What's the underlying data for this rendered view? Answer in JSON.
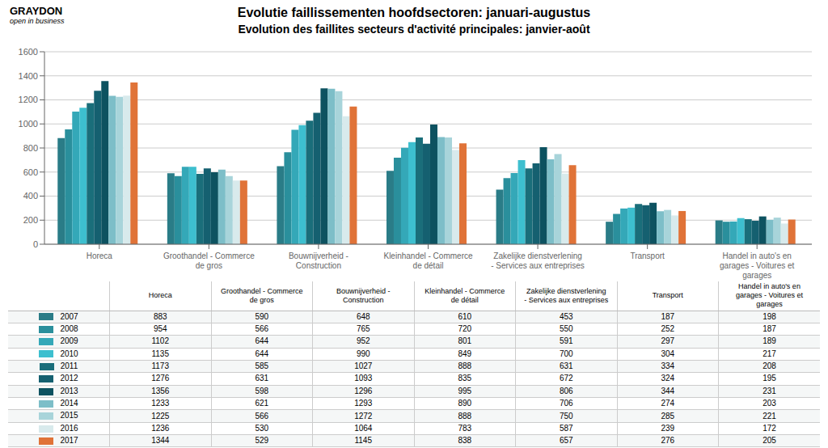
{
  "chart_data": {
    "type": "bar",
    "title": "Evolutie faillissementen hoofdsectoren: januari-augustus",
    "subtitle": "Evolution des faillites secteurs d'activité principales: janvier-août",
    "annotations": [
      "GRAYDON",
      "open in business"
    ],
    "categories": [
      "Horeca",
      "Groothandel - Commerce\nde gros",
      "Bouwnijverheid -\nConstruction",
      "Kleinhandel - Commerce\nde détail",
      "Zakelijke dienstverlening\n- Services aux entreprises",
      "Transport",
      "Handel in auto's en\ngarages - Voitures et\ngarages"
    ],
    "series": [
      {
        "name": "2007",
        "color": "#2a7c87",
        "values": [
          883,
          590,
          648,
          610,
          453,
          187,
          198
        ]
      },
      {
        "name": "2008",
        "color": "#2a8f9c",
        "values": [
          954,
          566,
          765,
          720,
          550,
          252,
          187
        ]
      },
      {
        "name": "2009",
        "color": "#34a8b8",
        "values": [
          1102,
          644,
          952,
          801,
          591,
          297,
          189
        ]
      },
      {
        "name": "2010",
        "color": "#3dbfcf",
        "values": [
          1135,
          644,
          990,
          849,
          700,
          304,
          217
        ]
      },
      {
        "name": "2011",
        "color": "#1a6e7a",
        "values": [
          1173,
          585,
          1027,
          888,
          631,
          334,
          208
        ]
      },
      {
        "name": "2012",
        "color": "#156070",
        "values": [
          1276,
          631,
          1093,
          835,
          672,
          324,
          195
        ]
      },
      {
        "name": "2013",
        "color": "#0d5260",
        "values": [
          1356,
          598,
          1296,
          995,
          806,
          344,
          231
        ]
      },
      {
        "name": "2014",
        "color": "#7dbec8",
        "values": [
          1233,
          621,
          1293,
          890,
          706,
          274,
          203
        ]
      },
      {
        "name": "2015",
        "color": "#a8d4da",
        "values": [
          1225,
          566,
          1272,
          888,
          750,
          285,
          221
        ]
      },
      {
        "name": "2016",
        "color": "#d8eaec",
        "values": [
          1236,
          530,
          1064,
          783,
          587,
          239,
          172
        ]
      },
      {
        "name": "2017",
        "color": "#e07338",
        "values": [
          1344,
          529,
          1145,
          838,
          657,
          276,
          205
        ]
      }
    ],
    "ylim": [
      0,
      1600
    ],
    "yticks": [
      0,
      200,
      400,
      600,
      800,
      1000,
      1200,
      1400,
      1600
    ],
    "grid": true
  }
}
